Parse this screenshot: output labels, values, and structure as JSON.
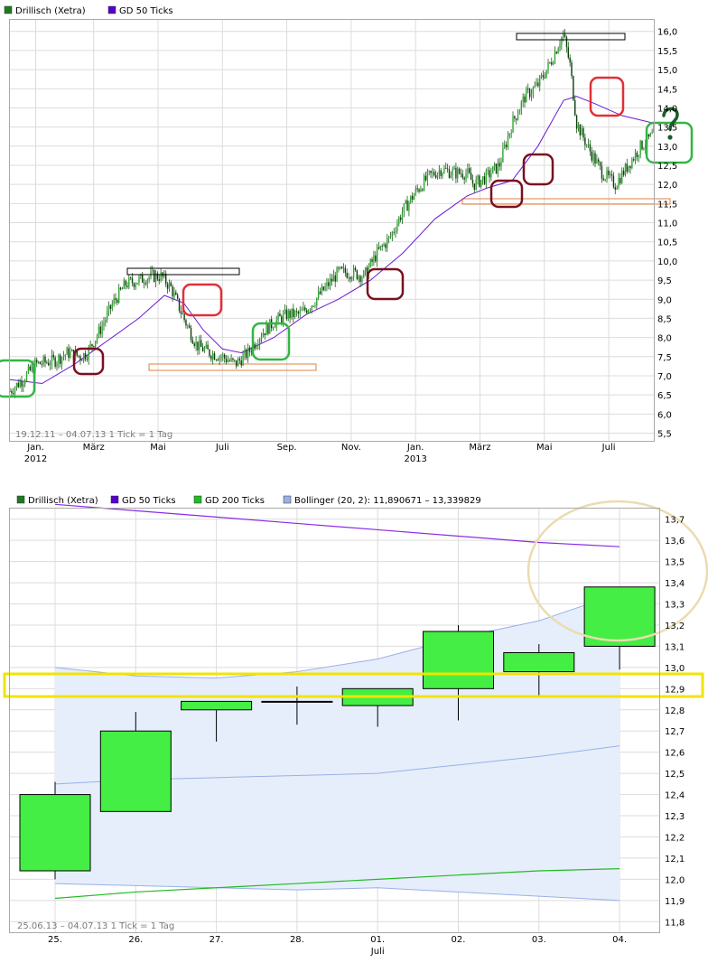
{
  "chart_data": [
    {
      "type": "line",
      "subtype": "candlestick-with-moving-average",
      "legend": [
        "Drillisch (Xetra)",
        "GD 50 Ticks"
      ],
      "legend_colors": [
        "#1f7a1f",
        "#5500cc"
      ],
      "legend_placement": "top-left",
      "footer": "19.12.11 – 04.07.13   1 Tick = 1 Tag",
      "y_ticks": [
        "16,0",
        "15,5",
        "15,0",
        "14,5",
        "14,0",
        "13,5",
        "13,0",
        "12,5",
        "12,0",
        "11,5",
        "11,0",
        "10,5",
        "10,0",
        "9,5",
        "9,0",
        "8,5",
        "8,0",
        "7,5",
        "7,0",
        "6,5",
        "6,0",
        "5,5"
      ],
      "ylim": [
        5.3,
        16.3
      ],
      "x_ticks": [
        {
          "label": "Jan.",
          "sub": "2012",
          "t": 0.04
        },
        {
          "label": "März",
          "sub": "",
          "t": 0.13
        },
        {
          "label": "Mai",
          "sub": "",
          "t": 0.23
        },
        {
          "label": "Juli",
          "sub": "",
          "t": 0.33
        },
        {
          "label": "Sep.",
          "sub": "",
          "t": 0.43
        },
        {
          "label": "Nov.",
          "sub": "",
          "t": 0.53
        },
        {
          "label": "Jan.",
          "sub": "2013",
          "t": 0.63
        },
        {
          "label": "März",
          "sub": "",
          "t": 0.73
        },
        {
          "label": "Mai",
          "sub": "",
          "t": 0.83
        },
        {
          "label": "Juli",
          "sub": "",
          "t": 0.93
        }
      ],
      "price_path": [
        [
          0.0,
          6.6
        ],
        [
          0.02,
          6.9
        ],
        [
          0.04,
          7.3
        ],
        [
          0.07,
          7.4
        ],
        [
          0.09,
          7.6
        ],
        [
          0.11,
          7.5
        ],
        [
          0.12,
          7.6
        ],
        [
          0.14,
          8.2
        ],
        [
          0.16,
          8.9
        ],
        [
          0.18,
          9.4
        ],
        [
          0.2,
          9.5
        ],
        [
          0.22,
          9.6
        ],
        [
          0.235,
          9.6
        ],
        [
          0.25,
          9.3
        ],
        [
          0.27,
          8.5
        ],
        [
          0.29,
          7.8
        ],
        [
          0.31,
          7.6
        ],
        [
          0.33,
          7.5
        ],
        [
          0.35,
          7.3
        ],
        [
          0.37,
          7.6
        ],
        [
          0.39,
          8.1
        ],
        [
          0.41,
          8.4
        ],
        [
          0.43,
          8.6
        ],
        [
          0.45,
          8.6
        ],
        [
          0.47,
          8.9
        ],
        [
          0.49,
          9.3
        ],
        [
          0.51,
          9.7
        ],
        [
          0.53,
          9.7
        ],
        [
          0.55,
          9.6
        ],
        [
          0.57,
          10.2
        ],
        [
          0.59,
          10.6
        ],
        [
          0.61,
          11.3
        ],
        [
          0.63,
          11.8
        ],
        [
          0.65,
          12.2
        ],
        [
          0.67,
          12.4
        ],
        [
          0.69,
          12.3
        ],
        [
          0.71,
          12.3
        ],
        [
          0.72,
          12.0
        ],
        [
          0.74,
          12.2
        ],
        [
          0.76,
          12.5
        ],
        [
          0.78,
          13.6
        ],
        [
          0.8,
          14.3
        ],
        [
          0.82,
          14.6
        ],
        [
          0.84,
          15.2
        ],
        [
          0.855,
          15.8
        ],
        [
          0.86,
          15.9
        ],
        [
          0.87,
          15.1
        ],
        [
          0.88,
          13.6
        ],
        [
          0.9,
          12.9
        ],
        [
          0.92,
          12.3
        ],
        [
          0.94,
          12.0
        ],
        [
          0.96,
          12.5
        ],
        [
          0.98,
          13.0
        ],
        [
          1.0,
          13.3
        ]
      ],
      "ma_path": [
        [
          0.0,
          6.9
        ],
        [
          0.05,
          6.8
        ],
        [
          0.1,
          7.3
        ],
        [
          0.15,
          7.9
        ],
        [
          0.2,
          8.5
        ],
        [
          0.24,
          9.1
        ],
        [
          0.27,
          8.9
        ],
        [
          0.3,
          8.2
        ],
        [
          0.33,
          7.7
        ],
        [
          0.36,
          7.6
        ],
        [
          0.41,
          8.0
        ],
        [
          0.46,
          8.6
        ],
        [
          0.51,
          9.0
        ],
        [
          0.56,
          9.5
        ],
        [
          0.61,
          10.2
        ],
        [
          0.66,
          11.1
        ],
        [
          0.71,
          11.7
        ],
        [
          0.74,
          11.9
        ],
        [
          0.78,
          12.1
        ],
        [
          0.82,
          13.0
        ],
        [
          0.86,
          14.2
        ],
        [
          0.88,
          14.3
        ],
        [
          0.91,
          14.1
        ],
        [
          0.95,
          13.8
        ],
        [
          1.0,
          13.6
        ]
      ]
    },
    {
      "type": "candlestick",
      "legend": [
        "Drillisch (Xetra)",
        "GD 50 Ticks",
        "GD 200 Ticks",
        "Bollinger (20, 2): 11,890671 – 13,339829"
      ],
      "legend_colors": [
        "#1f7a1f",
        "#5500cc",
        "#22bb22",
        "#9ab0e8"
      ],
      "legend_placement": "top-left",
      "footer": "25.06.13 – 04.07.13   1 Tick = 1 Tag",
      "y_ticks": [
        "13,7",
        "13,6",
        "13,5",
        "13,4",
        "13,3",
        "13,2",
        "13,1",
        "13,0",
        "12,9",
        "12,8",
        "12,7",
        "12,6",
        "12,5",
        "12,4",
        "12,3",
        "12,2",
        "12,1",
        "12,0",
        "11,9",
        "11,8"
      ],
      "ylim": [
        11.75,
        13.75
      ],
      "categories": [
        "25.",
        "26.",
        "27.",
        "28.",
        "01.",
        "02.",
        "03.",
        "04."
      ],
      "x_sublabel": {
        "index": 4,
        "text": "Juli"
      },
      "candles": [
        {
          "o": 12.04,
          "c": 12.4,
          "h": 12.46,
          "l": 12.0
        },
        {
          "o": 12.32,
          "c": 12.7,
          "h": 12.79,
          "l": 12.32
        },
        {
          "o": 12.8,
          "c": 12.84,
          "h": 12.84,
          "l": 12.65
        },
        {
          "o": 12.84,
          "c": 12.84,
          "h": 12.91,
          "l": 12.73
        },
        {
          "o": 12.82,
          "c": 12.9,
          "h": 12.9,
          "l": 12.72
        },
        {
          "o": 12.9,
          "c": 13.17,
          "h": 13.2,
          "l": 12.75
        },
        {
          "o": 12.98,
          "c": 13.07,
          "h": 13.11,
          "l": 12.86
        },
        {
          "o": 13.1,
          "c": 13.38,
          "h": 13.38,
          "l": 12.99
        }
      ],
      "gd50": [
        13.77,
        13.74,
        13.71,
        13.68,
        13.65,
        13.62,
        13.59,
        13.57
      ],
      "gd200": [
        11.91,
        11.94,
        11.96,
        11.98,
        12.0,
        12.02,
        12.04,
        12.05
      ],
      "boll_upper": [
        13.0,
        12.96,
        12.95,
        12.98,
        13.04,
        13.14,
        13.22,
        13.35
      ],
      "boll_mid": [
        12.45,
        12.47,
        12.48,
        12.49,
        12.5,
        12.54,
        12.58,
        12.63
      ],
      "boll_lower": [
        11.98,
        11.97,
        11.96,
        11.95,
        11.96,
        11.94,
        11.92,
        11.9
      ]
    }
  ]
}
